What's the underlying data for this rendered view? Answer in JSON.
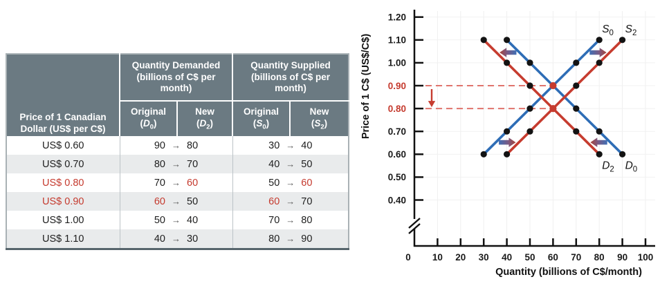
{
  "table": {
    "price_header": "Price of 1 Canadian Dollar (US$ per C$)",
    "arrow_glyph": "→",
    "col_groups": [
      {
        "title": "Quantity Demanded (billions of C$ per month)",
        "subcols": [
          {
            "label": "Original",
            "symbol": "D",
            "subscript": "0"
          },
          {
            "label": "New",
            "symbol": "D",
            "subscript": "2"
          }
        ]
      },
      {
        "title": "Quantity Supplied (billions of C$ per month)",
        "subcols": [
          {
            "label": "Original",
            "symbol": "S",
            "subscript": "0"
          },
          {
            "label": "New",
            "symbol": "S",
            "subscript": "2"
          }
        ]
      }
    ],
    "rows": [
      {
        "price": "US$ 0.60",
        "price_red": false,
        "demand": {
          "original": "90",
          "original_red": false,
          "new": "80",
          "new_red": false
        },
        "supply": {
          "original": "30",
          "original_red": false,
          "new": "40",
          "new_red": false
        }
      },
      {
        "price": "US$ 0.70",
        "price_red": false,
        "demand": {
          "original": "80",
          "original_red": false,
          "new": "70",
          "new_red": false
        },
        "supply": {
          "original": "40",
          "original_red": false,
          "new": "50",
          "new_red": false
        }
      },
      {
        "price": "US$ 0.80",
        "price_red": true,
        "demand": {
          "original": "70",
          "original_red": false,
          "new": "60",
          "new_red": true
        },
        "supply": {
          "original": "50",
          "original_red": false,
          "new": "60",
          "new_red": true
        }
      },
      {
        "price": "US$ 0.90",
        "price_red": true,
        "demand": {
          "original": "60",
          "original_red": true,
          "new": "50",
          "new_red": false
        },
        "supply": {
          "original": "60",
          "original_red": true,
          "new": "70",
          "new_red": false
        }
      },
      {
        "price": "US$ 1.00",
        "price_red": false,
        "demand": {
          "original": "50",
          "original_red": false,
          "new": "40",
          "new_red": false
        },
        "supply": {
          "original": "70",
          "original_red": false,
          "new": "80",
          "new_red": false
        }
      },
      {
        "price": "US$ 1.10",
        "price_red": false,
        "demand": {
          "original": "40",
          "original_red": false,
          "new": "30",
          "new_red": false
        },
        "supply": {
          "original": "80",
          "original_red": false,
          "new": "90",
          "new_red": false
        }
      }
    ]
  },
  "chart_data": {
    "type": "line",
    "xlabel": "Quantity (billions of C$/month)",
    "ylabel": "Price of 1 C$ (US$/C$)",
    "xlim": [
      0,
      100
    ],
    "ylim_shown": [
      0.4,
      1.2
    ],
    "axis_break_on_y": true,
    "grid": true,
    "xticks": [
      0,
      10,
      20,
      30,
      40,
      50,
      60,
      70,
      80,
      90,
      100
    ],
    "xtick_labels": [
      "0",
      "10",
      "20",
      "30",
      "40",
      "50",
      "60",
      "70",
      "80",
      "90",
      "100"
    ],
    "yticks": [
      0.4,
      0.5,
      0.6,
      0.7,
      0.8,
      0.9,
      1.0,
      1.1,
      1.2
    ],
    "ytick_labels": [
      "0.40",
      "0.50",
      "0.60",
      "0.70",
      "0.80",
      "0.90",
      "1.00",
      "1.10",
      "1.20"
    ],
    "red_ytick_labels": [
      "0.80",
      "0.90"
    ],
    "colors": {
      "original_curve": "#2e6db6",
      "new_curve": "#c63c2f",
      "dashed_guide": "#e0736c",
      "data_dot": "#131313",
      "equilibrium_dot": "#c63c2f",
      "arrow_gradient_tail": "#3f6fb5",
      "arrow_gradient_head": "#a84338",
      "table_header_bg": "#6b7a82",
      "table_red_text": "#c53a2e"
    },
    "series": [
      {
        "name": "D0",
        "label_symbol": "D",
        "label_subscript": "0",
        "role": "original",
        "label_placement": "below-right",
        "points": [
          [
            40,
            1.1
          ],
          [
            50,
            1.0
          ],
          [
            60,
            0.9
          ],
          [
            70,
            0.8
          ],
          [
            80,
            0.7
          ],
          [
            90,
            0.6
          ]
        ]
      },
      {
        "name": "S0",
        "label_symbol": "S",
        "label_subscript": "0",
        "role": "original",
        "label_placement": "above-right",
        "points": [
          [
            30,
            0.6
          ],
          [
            40,
            0.7
          ],
          [
            50,
            0.8
          ],
          [
            60,
            0.9
          ],
          [
            70,
            1.0
          ],
          [
            80,
            1.1
          ]
        ]
      },
      {
        "name": "D2",
        "label_symbol": "D",
        "label_subscript": "2",
        "role": "new",
        "label_placement": "below-right",
        "points": [
          [
            30,
            1.1
          ],
          [
            40,
            1.0
          ],
          [
            50,
            0.9
          ],
          [
            60,
            0.8
          ],
          [
            70,
            0.7
          ],
          [
            80,
            0.6
          ]
        ]
      },
      {
        "name": "S2",
        "label_symbol": "S",
        "label_subscript": "2",
        "role": "new",
        "label_placement": "above-right",
        "points": [
          [
            40,
            0.6
          ],
          [
            50,
            0.7
          ],
          [
            60,
            0.8
          ],
          [
            70,
            0.9
          ],
          [
            80,
            1.0
          ],
          [
            90,
            1.1
          ]
        ]
      }
    ],
    "equilibria": [
      {
        "quantity": 60,
        "price": 0.9,
        "role": "original"
      },
      {
        "quantity": 60,
        "price": 0.8,
        "role": "new"
      }
    ],
    "dashed_prices": [
      0.9,
      0.8
    ],
    "price_drop_arrow": {
      "from": 0.9,
      "to": 0.8
    },
    "shift_arrows": [
      {
        "family": "demand",
        "from_series": "D0",
        "to_series": "D2",
        "at_price": 1.045,
        "direction": "left"
      },
      {
        "family": "supply",
        "from_series": "S0",
        "to_series": "S2",
        "at_price": 1.045,
        "direction": "right"
      },
      {
        "family": "supply",
        "from_series": "S0",
        "to_series": "S2",
        "at_price": 0.652,
        "direction": "right"
      },
      {
        "family": "demand",
        "from_series": "D0",
        "to_series": "D2",
        "at_price": 0.652,
        "direction": "left"
      }
    ]
  }
}
